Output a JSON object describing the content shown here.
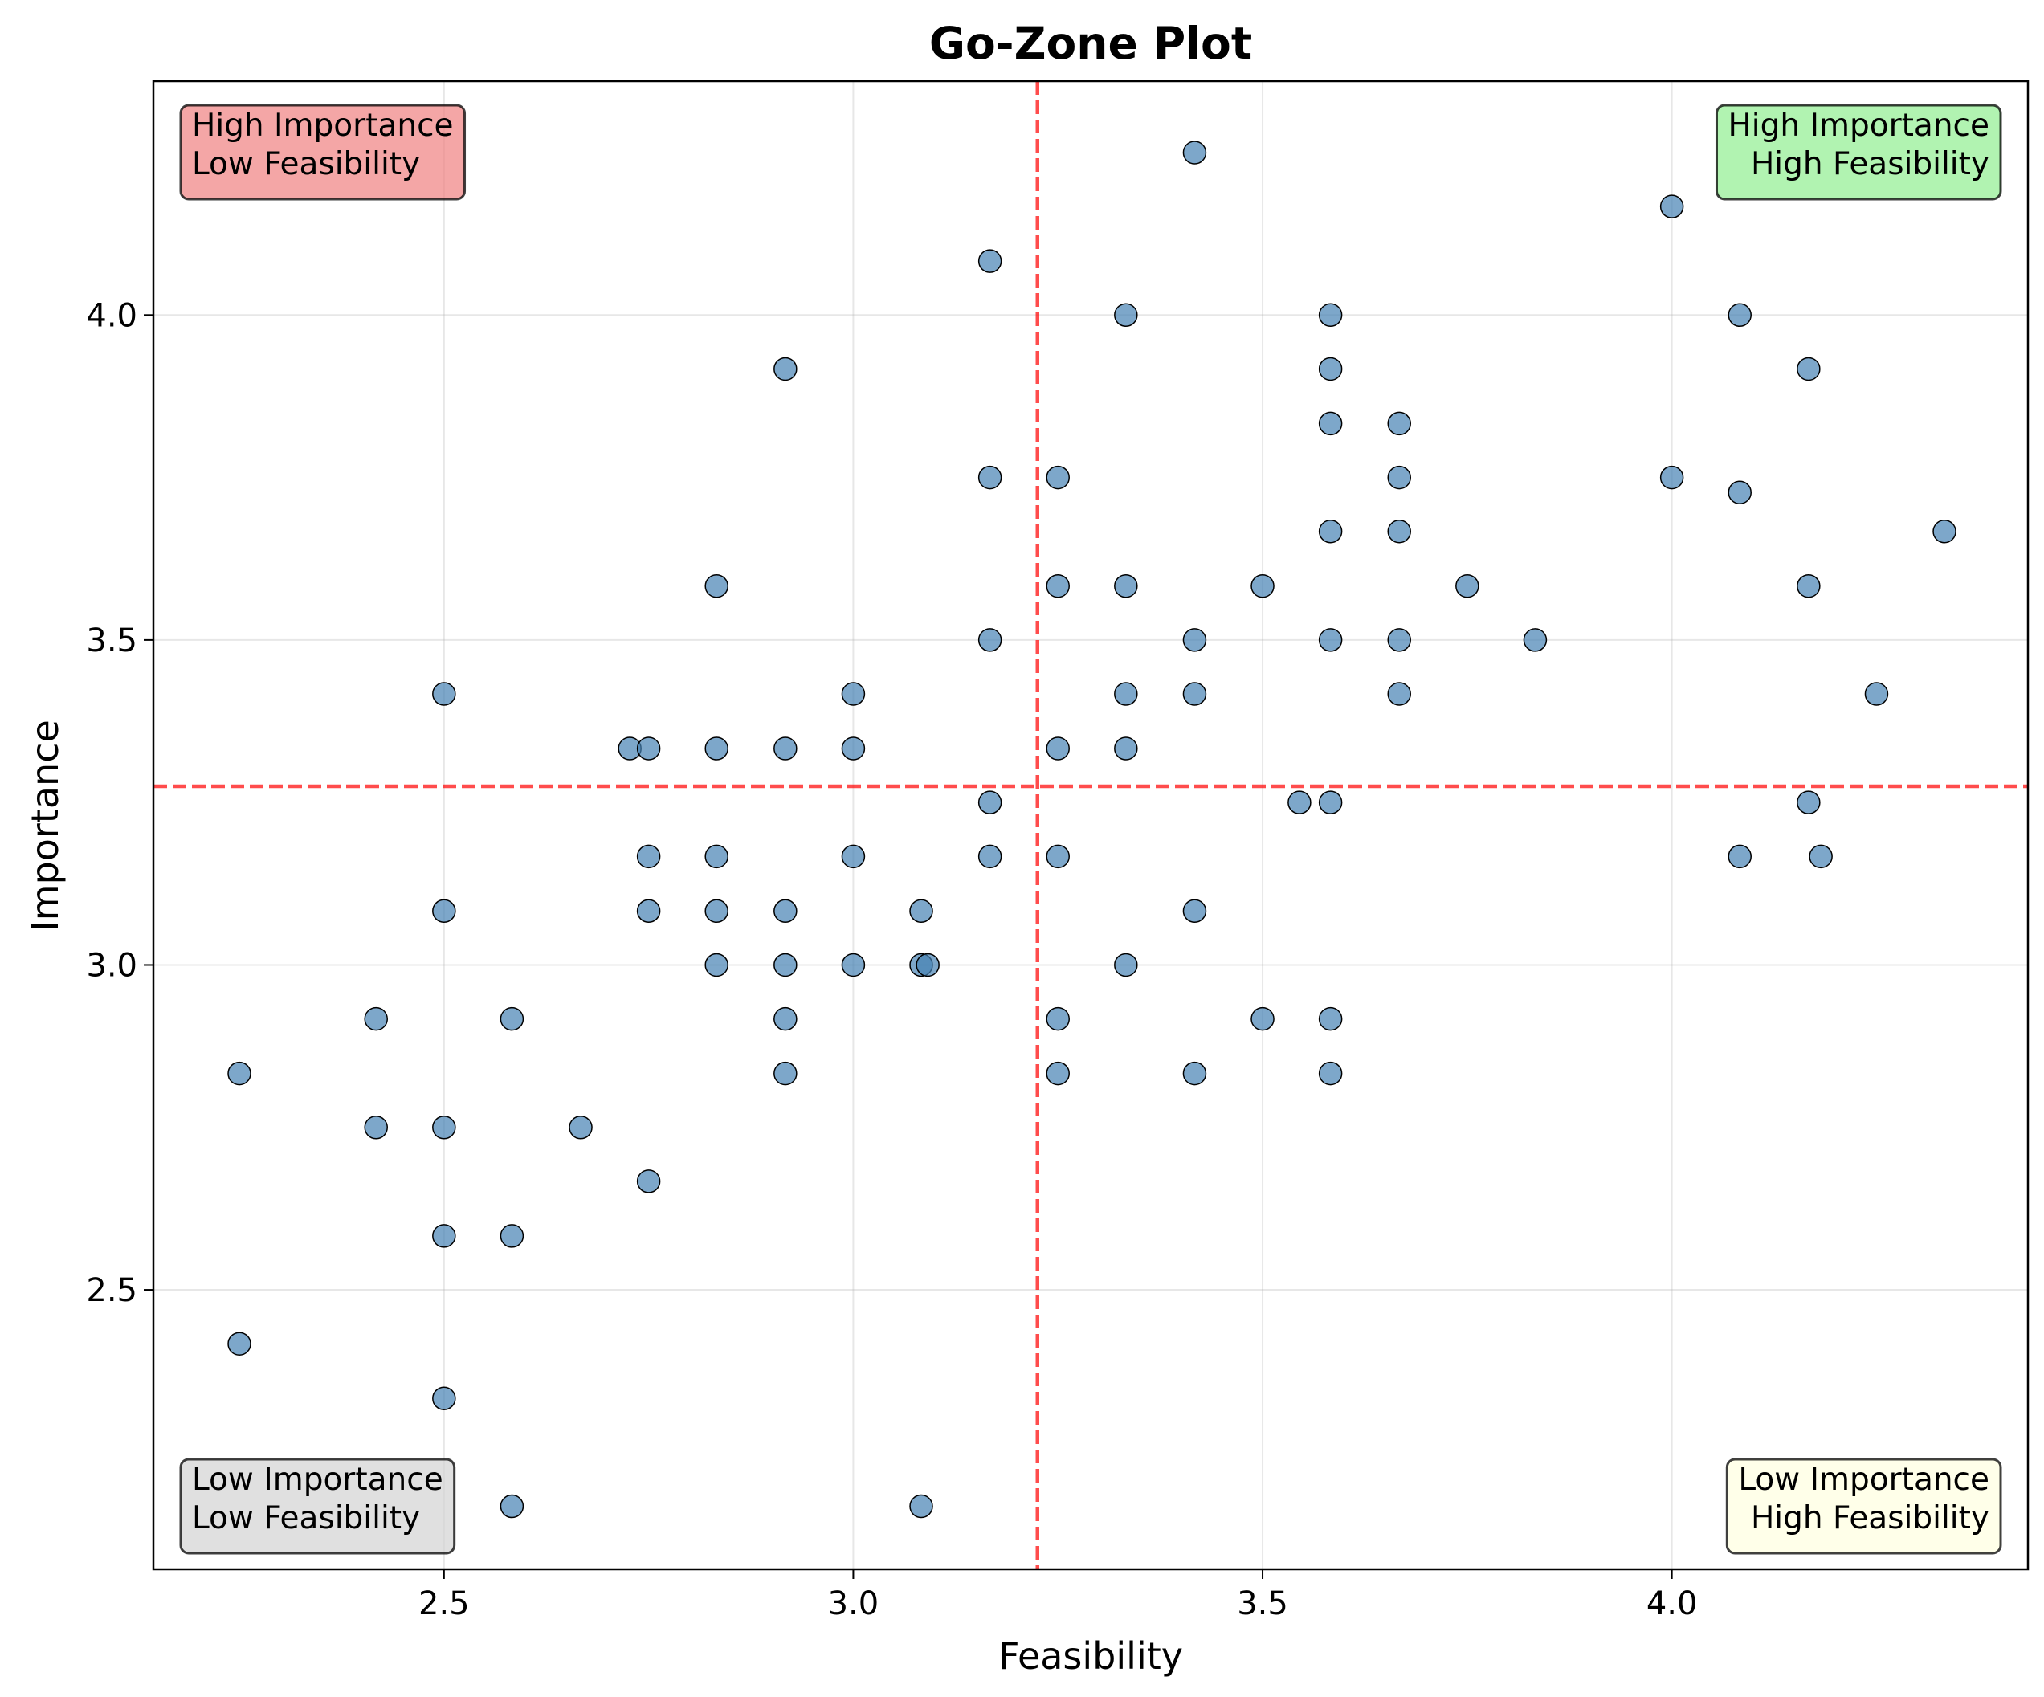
{
  "chart_data": {
    "type": "scatter",
    "title": "Go-Zone Plot",
    "xlabel": "Feasibility",
    "ylabel": "Importance",
    "xlim": [
      2.145,
      4.435
    ],
    "ylim": [
      2.07,
      4.36
    ],
    "x_ticks": [
      "2.5",
      "3.0",
      "3.5",
      "4.0"
    ],
    "y_ticks": [
      "2.5",
      "3.0",
      "3.5",
      "4.0"
    ],
    "grid": true,
    "point_color": "#4682b4",
    "threshold_color": "#ff0000",
    "thresholds": {
      "x": 3.225,
      "y": 3.275
    },
    "quadrants": [
      {
        "position": "top-left",
        "lines": [
          "High Importance",
          "Low Feasibility"
        ],
        "color": "#f08080"
      },
      {
        "position": "top-right",
        "lines": [
          "High Importance",
          "High Feasibility"
        ],
        "color": "#90ee90"
      },
      {
        "position": "bottom-left",
        "lines": [
          "Low Importance",
          "Low Feasibility"
        ],
        "color": "#d3d3d3"
      },
      {
        "position": "bottom-right",
        "lines": [
          "Low Importance",
          "High Feasibility"
        ],
        "color": "#ffffe0"
      }
    ],
    "points": [
      [
        3.417,
        4.25
      ],
      [
        3.167,
        4.083
      ],
      [
        4.0,
        4.167
      ],
      [
        3.333,
        4.0
      ],
      [
        3.583,
        4.0
      ],
      [
        4.083,
        4.0
      ],
      [
        2.917,
        3.917
      ],
      [
        3.583,
        3.917
      ],
      [
        4.167,
        3.917
      ],
      [
        3.583,
        3.833
      ],
      [
        3.667,
        3.833
      ],
      [
        3.167,
        3.75
      ],
      [
        3.25,
        3.75
      ],
      [
        3.667,
        3.75
      ],
      [
        4.0,
        3.75
      ],
      [
        4.083,
        3.727
      ],
      [
        3.583,
        3.667
      ],
      [
        3.667,
        3.667
      ],
      [
        4.333,
        3.667
      ],
      [
        2.833,
        3.583
      ],
      [
        3.25,
        3.583
      ],
      [
        3.333,
        3.583
      ],
      [
        3.5,
        3.583
      ],
      [
        3.75,
        3.583
      ],
      [
        4.167,
        3.583
      ],
      [
        3.167,
        3.5
      ],
      [
        3.417,
        3.5
      ],
      [
        3.583,
        3.5
      ],
      [
        3.667,
        3.5
      ],
      [
        3.833,
        3.5
      ],
      [
        2.5,
        3.417
      ],
      [
        3.0,
        3.417
      ],
      [
        3.333,
        3.417
      ],
      [
        3.417,
        3.417
      ],
      [
        3.667,
        3.417
      ],
      [
        4.25,
        3.417
      ],
      [
        2.727,
        3.333
      ],
      [
        2.75,
        3.333
      ],
      [
        2.833,
        3.333
      ],
      [
        2.917,
        3.333
      ],
      [
        3.0,
        3.333
      ],
      [
        3.25,
        3.333
      ],
      [
        3.333,
        3.333
      ],
      [
        3.167,
        3.25
      ],
      [
        3.545,
        3.25
      ],
      [
        3.583,
        3.25
      ],
      [
        4.167,
        3.25
      ],
      [
        2.75,
        3.167
      ],
      [
        2.833,
        3.167
      ],
      [
        3.0,
        3.167
      ],
      [
        3.167,
        3.167
      ],
      [
        3.25,
        3.167
      ],
      [
        4.083,
        3.167
      ],
      [
        4.182,
        3.167
      ],
      [
        2.5,
        3.083
      ],
      [
        2.75,
        3.083
      ],
      [
        2.833,
        3.083
      ],
      [
        2.917,
        3.083
      ],
      [
        3.083,
        3.083
      ],
      [
        3.417,
        3.083
      ],
      [
        2.833,
        3.0
      ],
      [
        2.917,
        3.0
      ],
      [
        3.0,
        3.0
      ],
      [
        3.083,
        3.0
      ],
      [
        3.091,
        3.0
      ],
      [
        3.333,
        3.0
      ],
      [
        2.417,
        2.917
      ],
      [
        2.583,
        2.917
      ],
      [
        2.917,
        2.917
      ],
      [
        3.25,
        2.917
      ],
      [
        3.5,
        2.917
      ],
      [
        3.583,
        2.917
      ],
      [
        2.25,
        2.833
      ],
      [
        2.917,
        2.833
      ],
      [
        3.25,
        2.833
      ],
      [
        3.417,
        2.833
      ],
      [
        3.583,
        2.833
      ],
      [
        2.417,
        2.75
      ],
      [
        2.5,
        2.75
      ],
      [
        2.667,
        2.75
      ],
      [
        2.75,
        2.667
      ],
      [
        2.5,
        2.583
      ],
      [
        2.583,
        2.583
      ],
      [
        2.25,
        2.417
      ],
      [
        2.5,
        2.333
      ],
      [
        2.583,
        2.167
      ],
      [
        3.083,
        2.167
      ]
    ]
  }
}
